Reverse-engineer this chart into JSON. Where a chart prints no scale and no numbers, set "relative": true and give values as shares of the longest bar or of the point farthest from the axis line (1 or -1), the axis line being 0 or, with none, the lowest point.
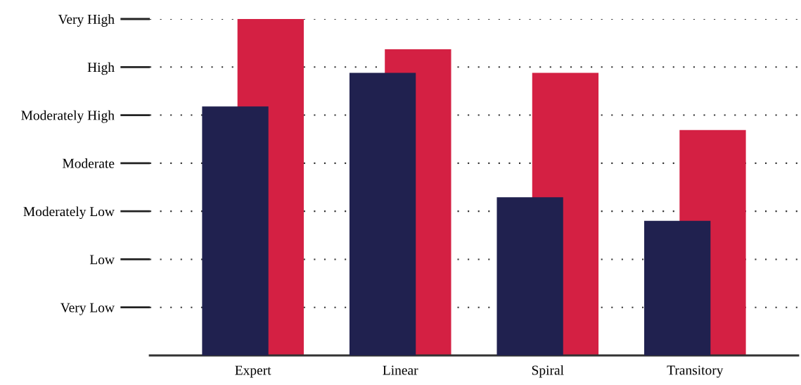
{
  "chart_data": {
    "type": "bar",
    "categories": [
      "Expert",
      "Linear",
      "Spiral",
      "Transitory"
    ],
    "series": [
      {
        "color": "#d42043",
        "values": [
          1.0,
          0.91,
          0.84,
          0.67
        ]
      },
      {
        "color": "#20214f",
        "values": [
          0.74,
          0.84,
          0.47,
          0.4
        ]
      }
    ],
    "relative": true,
    "annotations": [
      "Very Low",
      "Low",
      "Moderately Low",
      "Moderate",
      "Moderately High",
      "High",
      "Very High"
    ],
    "grid": "y"
  }
}
